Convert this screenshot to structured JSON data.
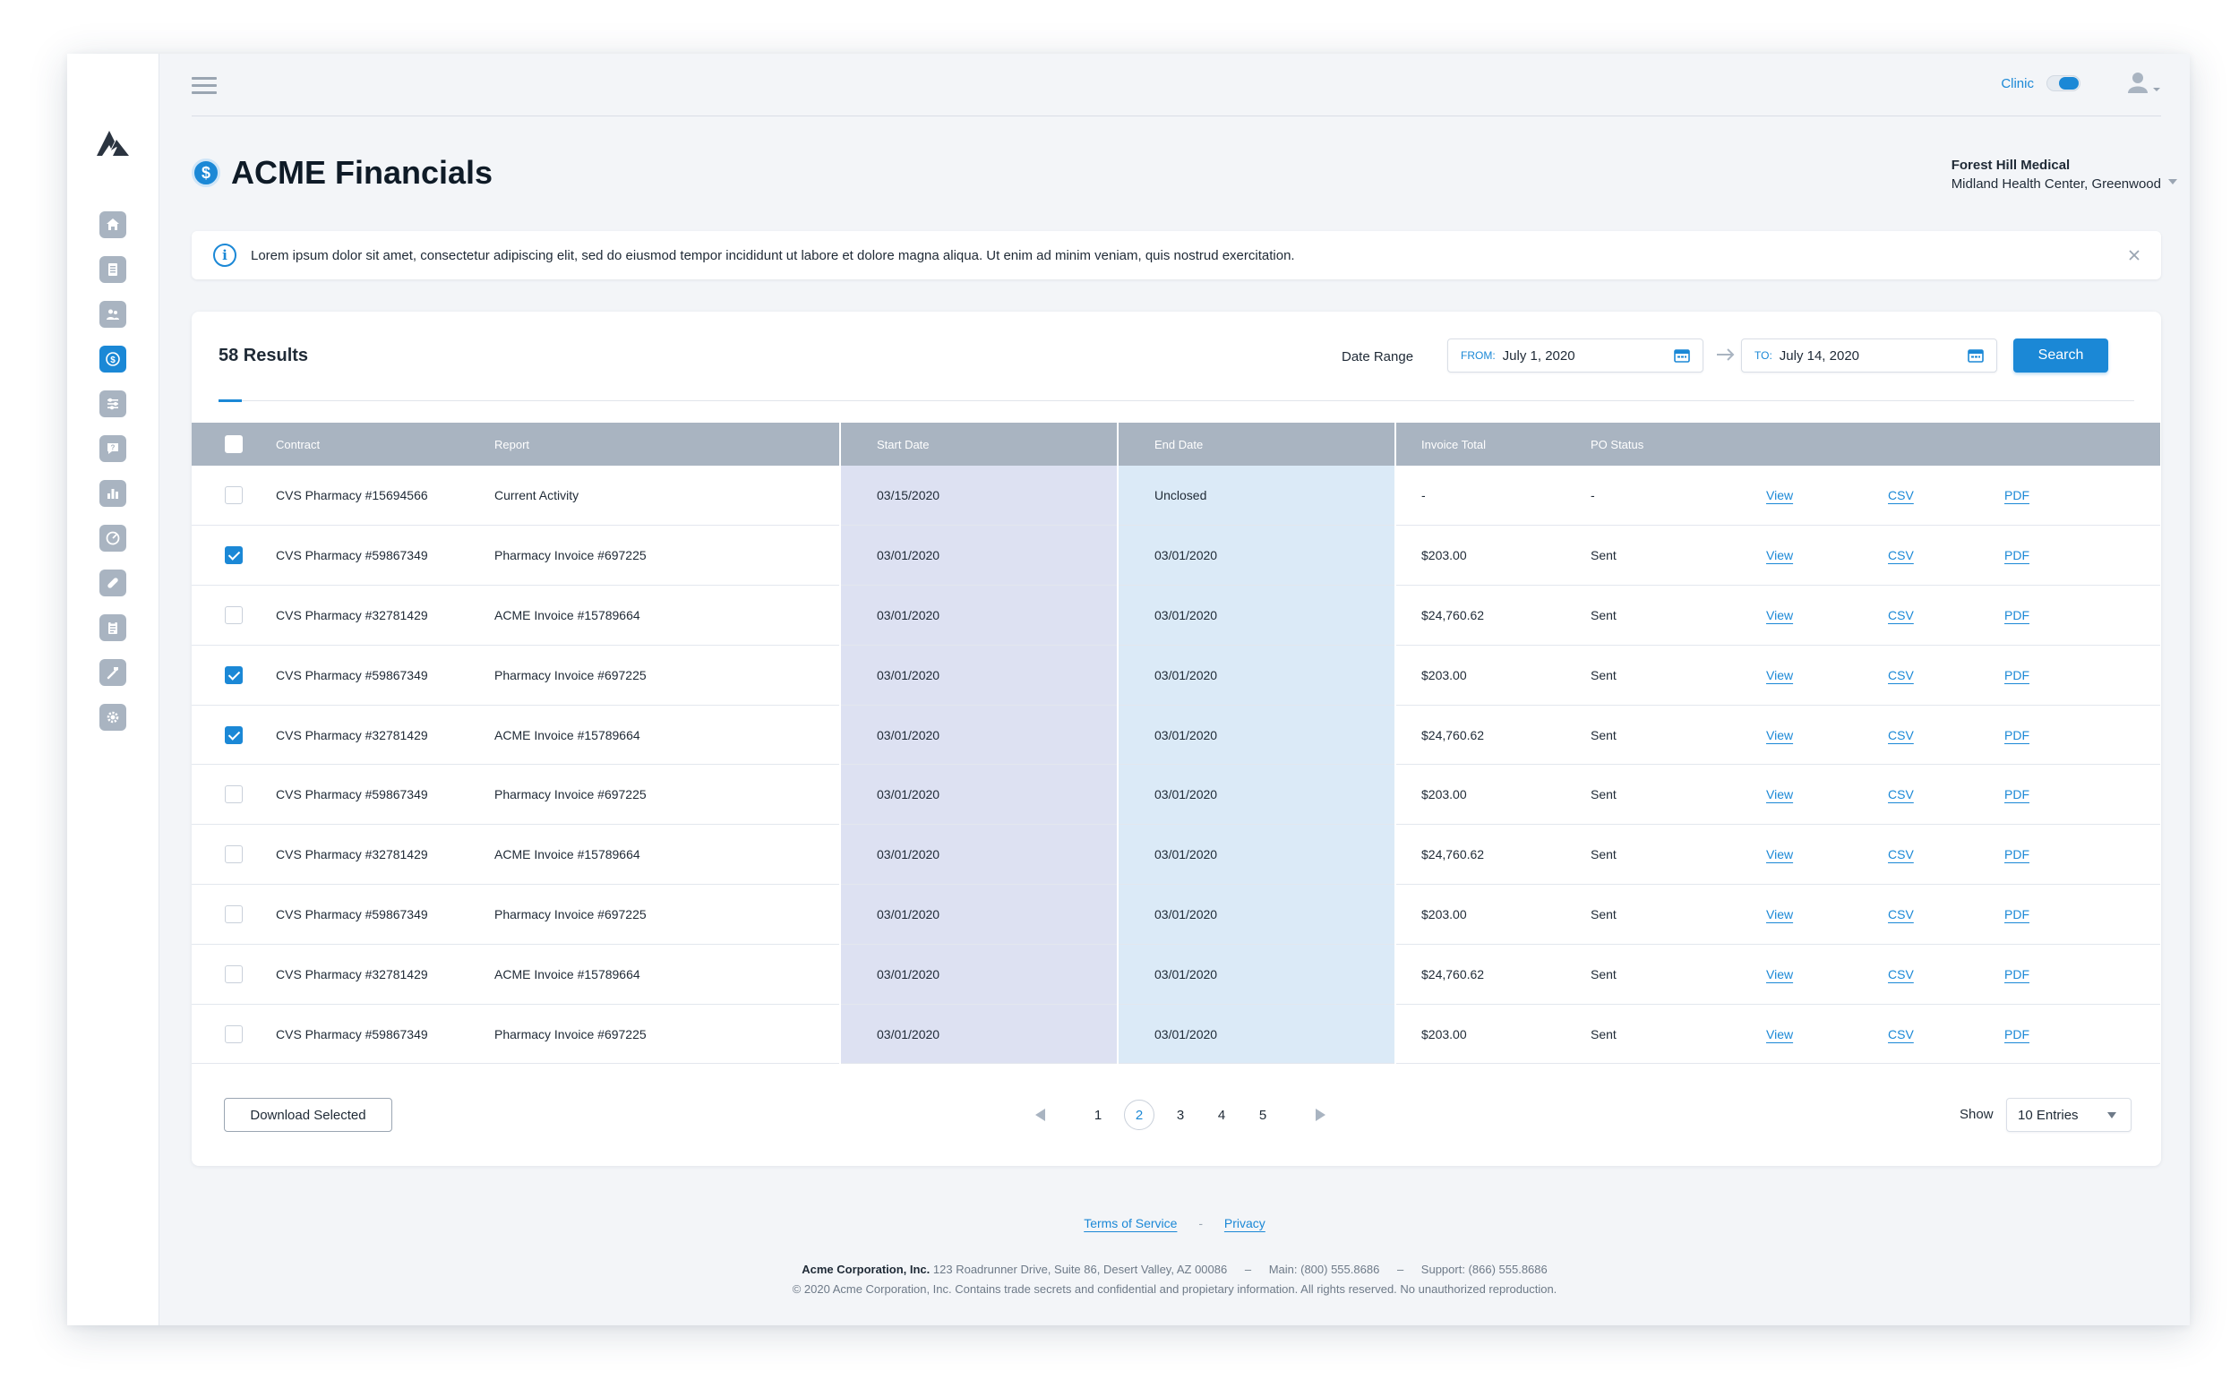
{
  "header": {
    "clinic_label": "Clinic",
    "title_light": "ACME",
    "title_bold": "Financials",
    "org_name": "Forest Hill Medical",
    "org_sub": "Midland Health Center, Greenwood"
  },
  "banner": {
    "text": "Lorem ipsum dolor sit amet, consectetur adipiscing elit, sed do eiusmod tempor incididunt ut labore et dolore magna aliqua. Ut enim ad minim veniam, quis nostrud exercitation."
  },
  "filters": {
    "results": "58 Results",
    "date_range_label": "Date Range",
    "from_prefix": "FROM:",
    "from_value": "July 1, 2020",
    "to_prefix": "TO:",
    "to_value": "July 14, 2020",
    "search_label": "Search"
  },
  "table": {
    "columns": {
      "contract": "Contract",
      "report": "Report",
      "start": "Start Date",
      "end": "End Date",
      "invoice": "Invoice Total",
      "po": "PO Status"
    },
    "rows": [
      {
        "contract": "CVS Pharmacy #15694566",
        "report": "Current Activity",
        "start": "03/15/2020",
        "end": "Unclosed",
        "invoice": "-",
        "po": "-",
        "view": "View",
        "csv": "CSV",
        "pdf": "PDF"
      },
      {
        "contract": "CVS Pharmacy #59867349",
        "report": "Pharmacy Invoice #697225",
        "start": "03/01/2020",
        "end": "03/01/2020",
        "invoice": "$203.00",
        "po": "Sent",
        "view": "View",
        "csv": "CSV",
        "pdf": "PDF"
      },
      {
        "contract": "CVS Pharmacy #32781429",
        "report": "ACME Invoice #15789664",
        "start": "03/01/2020",
        "end": "03/01/2020",
        "invoice": "$24,760.62",
        "po": "Sent",
        "view": "View",
        "csv": "CSV",
        "pdf": "PDF"
      },
      {
        "contract": "CVS Pharmacy #59867349",
        "report": "Pharmacy Invoice #697225",
        "start": "03/01/2020",
        "end": "03/01/2020",
        "invoice": "$203.00",
        "po": "Sent",
        "view": "View",
        "csv": "CSV",
        "pdf": "PDF"
      },
      {
        "contract": "CVS Pharmacy #32781429",
        "report": "ACME Invoice #15789664",
        "start": "03/01/2020",
        "end": "03/01/2020",
        "invoice": "$24,760.62",
        "po": "Sent",
        "view": "View",
        "csv": "CSV",
        "pdf": "PDF"
      },
      {
        "contract": "CVS Pharmacy #59867349",
        "report": "Pharmacy Invoice #697225",
        "start": "03/01/2020",
        "end": "03/01/2020",
        "invoice": "$203.00",
        "po": "Sent",
        "view": "View",
        "csv": "CSV",
        "pdf": "PDF"
      },
      {
        "contract": "CVS Pharmacy #32781429",
        "report": "ACME Invoice #15789664",
        "start": "03/01/2020",
        "end": "03/01/2020",
        "invoice": "$24,760.62",
        "po": "Sent",
        "view": "View",
        "csv": "CSV",
        "pdf": "PDF"
      },
      {
        "contract": "CVS Pharmacy #59867349",
        "report": "Pharmacy Invoice #697225",
        "start": "03/01/2020",
        "end": "03/01/2020",
        "invoice": "$203.00",
        "po": "Sent",
        "view": "View",
        "csv": "CSV",
        "pdf": "PDF"
      },
      {
        "contract": "CVS Pharmacy #32781429",
        "report": "ACME Invoice #15789664",
        "start": "03/01/2020",
        "end": "03/01/2020",
        "invoice": "$24,760.62",
        "po": "Sent",
        "view": "View",
        "csv": "CSV",
        "pdf": "PDF"
      },
      {
        "contract": "CVS Pharmacy #59867349",
        "report": "Pharmacy Invoice #697225",
        "start": "03/01/2020",
        "end": "03/01/2020",
        "invoice": "$203.00",
        "po": "Sent",
        "view": "View",
        "csv": "CSV",
        "pdf": "PDF"
      }
    ],
    "checked": [
      false,
      true,
      false,
      true,
      true,
      false,
      false,
      false,
      false,
      false
    ]
  },
  "footer_bar": {
    "download_label": "Download Selected",
    "pages": [
      "1",
      "2",
      "3",
      "4",
      "5"
    ],
    "current_page": "2",
    "show_label": "Show",
    "entries_value": "10 Entries"
  },
  "footer": {
    "terms": "Terms of Service",
    "sep": "-",
    "privacy": "Privacy",
    "company": "Acme Corporation, Inc.",
    "address": "123 Roadrunner Drive, Suite 86, Desert Valley, AZ 00086",
    "dash": "–",
    "main_phone": "Main: (800) 555.8686",
    "support_phone": "Support: (866) 555.8686",
    "copyright": "© 2020 Acme Corporation, Inc. Contains trade secrets and confidential and propietary information. All rights reserved. No unauthorized reproduction."
  },
  "colors": {
    "accent": "#1b88d6",
    "header_gray": "#a9b4c1",
    "start_col": "#dde1f2",
    "end_col": "#dbeaf7"
  },
  "icons": {
    "sidebar": [
      "home-icon",
      "document-icon",
      "people-icon",
      "dollar-icon",
      "sliders-icon",
      "help-icon",
      "bar-chart-icon",
      "dashboard-icon",
      "pill-icon",
      "clipboard-icon",
      "tools-icon",
      "gear-icon"
    ],
    "active_index": 3
  }
}
